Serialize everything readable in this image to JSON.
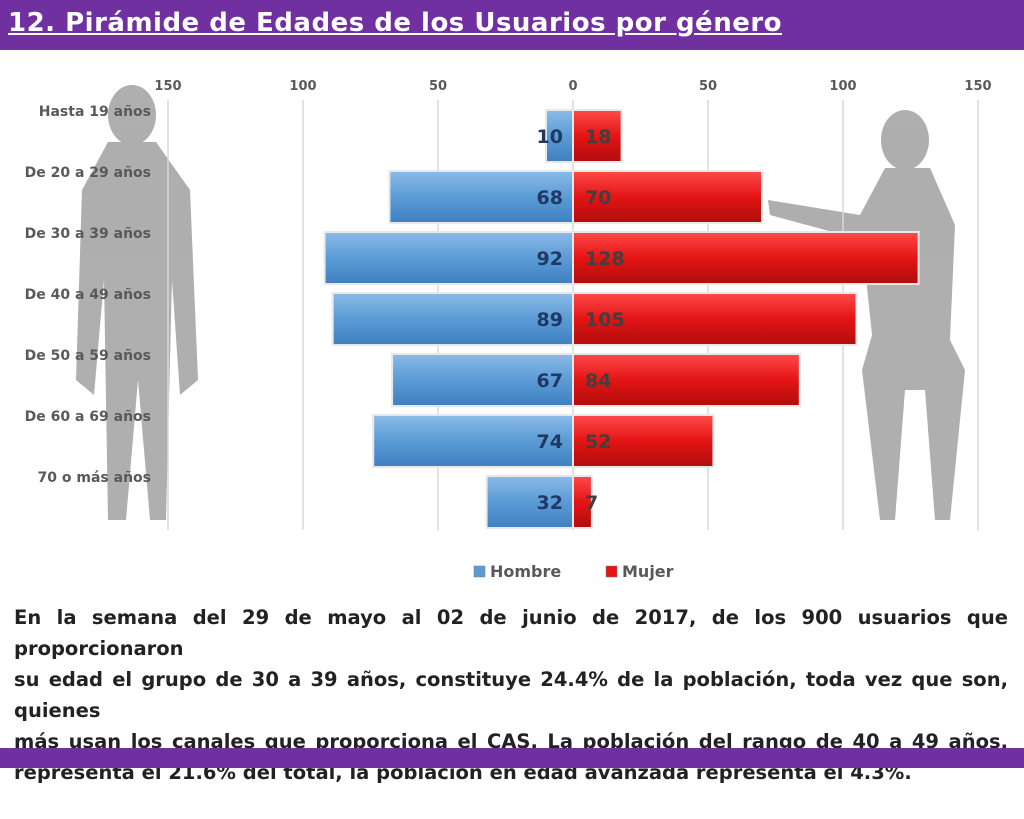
{
  "title": "12. Pirámide de Edades de los Usuarios por género",
  "chart_data": {
    "type": "bar",
    "orientation": "horizontal-population-pyramid",
    "categories": [
      "Hasta 19 años",
      "De 20 a 29 años",
      "De 30 a 39 años",
      "De 40 a 49 años",
      "De 50 a 59 años",
      "De 60 a 69 años",
      "70 o más años"
    ],
    "series": [
      {
        "name": "Hombre",
        "values": [
          10,
          68,
          92,
          89,
          67,
          74,
          32
        ],
        "color": "#5b9bd5",
        "side": "left"
      },
      {
        "name": "Mujer",
        "values": [
          18,
          70,
          128,
          105,
          84,
          52,
          7
        ],
        "color": "#e31414",
        "side": "right"
      }
    ],
    "xaxis_ticks": [
      "150",
      "100",
      "50",
      "0",
      "50",
      "100",
      "150"
    ],
    "xlim": [
      -150,
      150
    ],
    "grid": true,
    "legend_position": "bottom"
  },
  "description_lines": [
    "En la semana del 29 de mayo al 02 de junio de 2017, de los 900 usuarios  que proporcionaron",
    "su edad el grupo de 30 a 39 años, constituye 24.4% de la población, toda vez que son, quienes",
    "más usan los canales que proporciona el CAS. La población del rango de 40 a 49 años,",
    "representa el 21.6% del total, la población en edad avanzada representa el 4.3%."
  ]
}
